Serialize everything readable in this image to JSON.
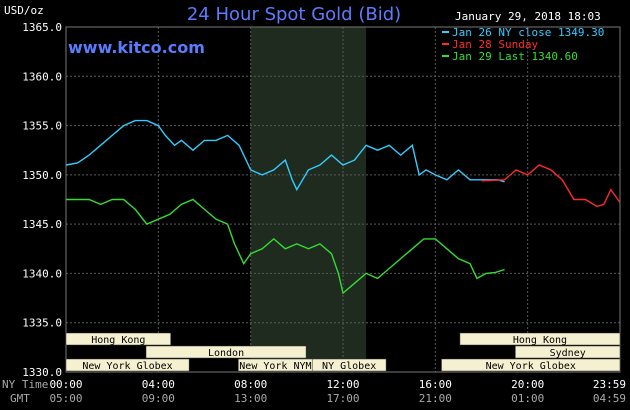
{
  "header": {
    "unit": "USD/oz",
    "title": "24 Hour Spot Gold (Bid)",
    "timestamp": "January 29, 2018 18:03",
    "website": "www.kitco.com"
  },
  "legend": [
    {
      "label": "Jan 26 NY close 1349.30",
      "color": "#33ccff"
    },
    {
      "label": "Jan 28 Sunday",
      "color": "#ff2a2a"
    },
    {
      "label": "Jan 29 Last 1340.60",
      "color": "#33dd33"
    }
  ],
  "axis_labels": {
    "ny_time": "NY Time",
    "gmt": "GMT"
  },
  "markets": [
    {
      "label": "Hong Kong",
      "x0": 0.0,
      "x1": 8.5
    },
    {
      "label": "London",
      "x0": 6.5,
      "x1": 19.5
    },
    {
      "label": "New York Globex",
      "x0": 0.0,
      "x1": 10.0
    },
    {
      "label": "New York NYMEX",
      "x0": 14.0,
      "x1": 21.0
    },
    {
      "label": "NY Globex",
      "x0": 20.0,
      "x1": 26.0
    },
    {
      "label": "Hong Kong",
      "x0": 32.0,
      "x1": 45.0
    },
    {
      "label": "Sydney",
      "x0": 36.5,
      "x1": 45.0
    },
    {
      "label": "New York Globex",
      "x0": 30.5,
      "x1": 45.0
    }
  ],
  "colors": {
    "background": "#000000",
    "grid": "#5a5a5a",
    "session_shade": "#1e2b1e",
    "title": "#5a7cff",
    "market_box": "#f5f0d0",
    "market_text": "#000000"
  },
  "chart_data": {
    "type": "line",
    "ylabel": "USD/oz",
    "ylim": [
      1330,
      1365
    ],
    "yticks": [
      "1330.0",
      "1335.0",
      "1340.0",
      "1345.0",
      "1350.0",
      "1355.0",
      "1360.0",
      "1365.0"
    ],
    "xlim": [
      0,
      24
    ],
    "xticks_ny": [
      "00:00",
      "04:00",
      "08:00",
      "12:00",
      "16:00",
      "20:00",
      "23:59"
    ],
    "xticks_gmt": [
      "05:00",
      "09:00",
      "13:00",
      "17:00",
      "21:00",
      "01:00",
      "04:59"
    ],
    "shaded_session_hours": [
      8.0,
      13.0
    ],
    "grid": true,
    "legend_position": "top-right",
    "series": [
      {
        "name": "Jan 26 NY close 1349.30",
        "color": "#33ccff",
        "points": [
          [
            0.0,
            1351.0
          ],
          [
            0.5,
            1351.2
          ],
          [
            1.0,
            1352.0
          ],
          [
            1.5,
            1353.0
          ],
          [
            2.0,
            1354.0
          ],
          [
            2.5,
            1355.0
          ],
          [
            3.0,
            1355.5
          ],
          [
            3.5,
            1355.5
          ],
          [
            4.0,
            1355.0
          ],
          [
            4.3,
            1354.0
          ],
          [
            4.7,
            1353.0
          ],
          [
            5.0,
            1353.5
          ],
          [
            5.5,
            1352.5
          ],
          [
            6.0,
            1353.5
          ],
          [
            6.5,
            1353.5
          ],
          [
            7.0,
            1354.0
          ],
          [
            7.5,
            1353.0
          ],
          [
            8.0,
            1350.5
          ],
          [
            8.5,
            1350.0
          ],
          [
            9.0,
            1350.5
          ],
          [
            9.5,
            1351.5
          ],
          [
            9.8,
            1349.5
          ],
          [
            10.0,
            1348.5
          ],
          [
            10.5,
            1350.5
          ],
          [
            11.0,
            1351.0
          ],
          [
            11.5,
            1352.0
          ],
          [
            12.0,
            1351.0
          ],
          [
            12.5,
            1351.5
          ],
          [
            13.0,
            1353.0
          ],
          [
            13.5,
            1352.5
          ],
          [
            14.0,
            1353.0
          ],
          [
            14.5,
            1352.0
          ],
          [
            15.0,
            1353.0
          ],
          [
            15.3,
            1350.0
          ],
          [
            15.6,
            1350.5
          ],
          [
            16.0,
            1350.0
          ],
          [
            16.5,
            1349.5
          ],
          [
            17.0,
            1350.5
          ],
          [
            17.5,
            1349.5
          ],
          [
            18.0,
            1349.5
          ],
          [
            18.3,
            1349.5
          ],
          [
            18.7,
            1349.5
          ],
          [
            19.0,
            1349.3
          ]
        ]
      },
      {
        "name": "Jan 28 Sunday",
        "color": "#ff2a2a",
        "points": [
          [
            18.0,
            1349.4
          ],
          [
            19.0,
            1349.5
          ],
          [
            19.5,
            1350.5
          ],
          [
            20.0,
            1350.0
          ],
          [
            20.5,
            1351.0
          ],
          [
            21.0,
            1350.5
          ],
          [
            21.5,
            1349.5
          ],
          [
            22.0,
            1347.5
          ],
          [
            22.5,
            1347.5
          ],
          [
            23.0,
            1346.8
          ],
          [
            23.3,
            1347.0
          ],
          [
            23.6,
            1348.5
          ],
          [
            24.0,
            1347.2
          ]
        ]
      },
      {
        "name": "Jan 29 Last 1340.60",
        "color": "#33dd33",
        "points": [
          [
            0.0,
            1347.5
          ],
          [
            0.5,
            1347.5
          ],
          [
            1.0,
            1347.5
          ],
          [
            1.5,
            1347.0
          ],
          [
            2.0,
            1347.5
          ],
          [
            2.5,
            1347.5
          ],
          [
            3.0,
            1346.5
          ],
          [
            3.5,
            1345.0
          ],
          [
            4.0,
            1345.5
          ],
          [
            4.5,
            1346.0
          ],
          [
            5.0,
            1347.0
          ],
          [
            5.5,
            1347.5
          ],
          [
            6.0,
            1346.5
          ],
          [
            6.5,
            1345.5
          ],
          [
            7.0,
            1345.0
          ],
          [
            7.3,
            1343.0
          ],
          [
            7.7,
            1341.0
          ],
          [
            8.0,
            1342.0
          ],
          [
            8.5,
            1342.5
          ],
          [
            9.0,
            1343.5
          ],
          [
            9.5,
            1342.5
          ],
          [
            10.0,
            1343.0
          ],
          [
            10.5,
            1342.5
          ],
          [
            11.0,
            1343.0
          ],
          [
            11.5,
            1342.0
          ],
          [
            11.8,
            1340.0
          ],
          [
            12.0,
            1338.0
          ],
          [
            12.5,
            1339.0
          ],
          [
            13.0,
            1340.0
          ],
          [
            13.5,
            1339.5
          ],
          [
            14.0,
            1340.5
          ],
          [
            14.5,
            1341.5
          ],
          [
            15.0,
            1342.5
          ],
          [
            15.5,
            1343.5
          ],
          [
            16.0,
            1343.5
          ],
          [
            16.5,
            1342.5
          ],
          [
            17.0,
            1341.5
          ],
          [
            17.5,
            1341.0
          ],
          [
            17.8,
            1339.5
          ],
          [
            18.2,
            1340.0
          ],
          [
            18.6,
            1340.1
          ],
          [
            19.0,
            1340.4
          ]
        ]
      }
    ]
  }
}
